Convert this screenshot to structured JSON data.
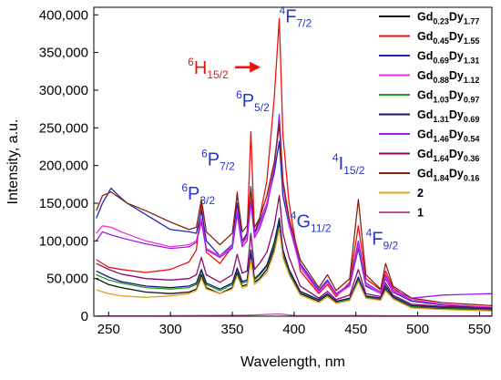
{
  "chart_data": {
    "type": "line",
    "xlabel": "Wavelength, nm",
    "ylabel": "Intensity, a.u.",
    "xlim": [
      238,
      560
    ],
    "ylim": [
      0,
      410000
    ],
    "x_ticks": [
      250,
      300,
      350,
      400,
      450,
      500,
      550
    ],
    "y_ticks": [
      0,
      50000,
      100000,
      150000,
      200000,
      250000,
      300000,
      350000,
      400000
    ],
    "y_tick_labels": [
      "0",
      "50,000",
      "100,000",
      "150,000",
      "200,000",
      "250,000",
      "300,000",
      "350,000",
      "400,000"
    ],
    "legend_position": "top-right",
    "annotations": [
      {
        "id": "h15",
        "main": "H",
        "sup": "6",
        "sub": "15/2",
        "x": 314,
        "y": 322000,
        "color": "#e8130e",
        "arrow": true
      },
      {
        "id": "p32",
        "main": "P",
        "sup": "6",
        "sub": "3/2",
        "x": 309,
        "y": 155000,
        "color": "#2b35c8"
      },
      {
        "id": "p72",
        "main": "P",
        "sup": "6",
        "sub": "7/2",
        "x": 325,
        "y": 200000,
        "color": "#2b35c8"
      },
      {
        "id": "p52",
        "main": "P",
        "sup": "6",
        "sub": "5/2",
        "x": 353,
        "y": 278000,
        "color": "#2b35c8"
      },
      {
        "id": "f72",
        "main": "F",
        "sup": "4",
        "sub": "7/2",
        "x": 388,
        "y": 390000,
        "color": "#2b35c8"
      },
      {
        "id": "g112",
        "main": "G",
        "sup": "4",
        "sub": "11/2",
        "x": 397,
        "y": 118000,
        "color": "#2b35c8"
      },
      {
        "id": "i152",
        "main": "I",
        "sup": "4",
        "sub": "15/2",
        "x": 431,
        "y": 195000,
        "color": "#2b35c8"
      },
      {
        "id": "f92",
        "main": "F",
        "sup": "4",
        "sub": "9/2",
        "x": 458,
        "y": 95000,
        "color": "#2b35c8"
      }
    ],
    "series": [
      {
        "label_parts": [
          [
            "Gd",
            ""
          ],
          [
            "0.23",
            "sub"
          ],
          [
            "Dy",
            ""
          ],
          [
            "1.77",
            "sub"
          ]
        ],
        "color": "#111111",
        "x": [
          240,
          250,
          260,
          280,
          300,
          315,
          321,
          325,
          329,
          340,
          350,
          354,
          358,
          362,
          365,
          368,
          372,
          378,
          384,
          388,
          391,
          396,
          405,
          420,
          427,
          434,
          445,
          452,
          458,
          470,
          474,
          480,
          495,
          520,
          560
        ],
        "y": [
          50000,
          42000,
          38000,
          32000,
          30000,
          32000,
          36000,
          55000,
          38000,
          30000,
          38000,
          58000,
          40000,
          42000,
          80000,
          45000,
          50000,
          62000,
          90000,
          125000,
          80000,
          58000,
          30000,
          20000,
          28000,
          18000,
          22000,
          48000,
          25000,
          22000,
          36000,
          24000,
          12000,
          10000,
          8000
        ]
      },
      {
        "label_parts": [
          [
            "Gd",
            ""
          ],
          [
            "0.45",
            "sub"
          ],
          [
            "Dy",
            ""
          ],
          [
            "1.55",
            "sub"
          ]
        ],
        "color": "#e8130e",
        "x": [
          240,
          250,
          260,
          280,
          300,
          315,
          321,
          325,
          329,
          340,
          350,
          354,
          358,
          362,
          365,
          368,
          372,
          378,
          384,
          388,
          391,
          396,
          405,
          420,
          427,
          434,
          445,
          452,
          458,
          470,
          474,
          480,
          495,
          520,
          560
        ],
        "y": [
          75000,
          65000,
          62000,
          58000,
          62000,
          72000,
          88000,
          150000,
          85000,
          70000,
          92000,
          165000,
          95000,
          110000,
          245000,
          110000,
          130000,
          180000,
          290000,
          395000,
          240000,
          150000,
          60000,
          30000,
          42000,
          26000,
          45000,
          120000,
          50000,
          35000,
          60000,
          38000,
          20000,
          15000,
          12000
        ]
      },
      {
        "label_parts": [
          [
            "Gd",
            ""
          ],
          [
            "0.69",
            "sub"
          ],
          [
            "Dy",
            ""
          ],
          [
            "1.31",
            "sub"
          ]
        ],
        "color": "#1c2ab8",
        "x": [
          240,
          245,
          252,
          258,
          265,
          280,
          300,
          315,
          321,
          325,
          329,
          340,
          350,
          354,
          358,
          362,
          365,
          368,
          372,
          378,
          384,
          388,
          391,
          396,
          405,
          420,
          427,
          434,
          445,
          452,
          458,
          470,
          474,
          480,
          495,
          520,
          560
        ],
        "y": [
          130000,
          150000,
          170000,
          160000,
          150000,
          135000,
          115000,
          112000,
          110000,
          140000,
          100000,
          80000,
          95000,
          150000,
          100000,
          110000,
          172000,
          110000,
          125000,
          150000,
          190000,
          232000,
          160000,
          120000,
          70000,
          35000,
          48000,
          30000,
          40000,
          90000,
          40000,
          30000,
          50000,
          32000,
          20000,
          15000,
          10000
        ]
      },
      {
        "label_parts": [
          [
            "Gd",
            ""
          ],
          [
            "0.88",
            "sub"
          ],
          [
            "Dy",
            ""
          ],
          [
            "1.12",
            "sub"
          ]
        ],
        "color": "#f030e0",
        "x": [
          240,
          245,
          252,
          260,
          280,
          300,
          315,
          321,
          325,
          329,
          340,
          350,
          354,
          358,
          362,
          365,
          368,
          372,
          378,
          384,
          388,
          391,
          396,
          405,
          420,
          427,
          434,
          445,
          452,
          458,
          470,
          474,
          480,
          495,
          520,
          560
        ],
        "y": [
          110000,
          120000,
          118000,
          112000,
          100000,
          92000,
          95000,
          100000,
          130000,
          90000,
          80000,
          92000,
          140000,
          95000,
          105000,
          160000,
          108000,
          120000,
          150000,
          200000,
          255000,
          175000,
          120000,
          65000,
          32000,
          45000,
          28000,
          40000,
          95000,
          42000,
          30000,
          52000,
          33000,
          22000,
          16000,
          12000
        ]
      },
      {
        "label_parts": [
          [
            "Gd",
            ""
          ],
          [
            "1.03",
            "sub"
          ],
          [
            "Dy",
            ""
          ],
          [
            "0.97",
            "sub"
          ]
        ],
        "color": "#1f9a22",
        "x": [
          240,
          250,
          260,
          280,
          300,
          315,
          321,
          325,
          329,
          340,
          350,
          354,
          358,
          362,
          365,
          368,
          372,
          378,
          384,
          388,
          391,
          396,
          405,
          420,
          427,
          434,
          445,
          452,
          458,
          470,
          474,
          480,
          495,
          520,
          560
        ],
        "y": [
          55000,
          48000,
          44000,
          38000,
          36000,
          38000,
          42000,
          60000,
          42000,
          34000,
          42000,
          62000,
          44000,
          46000,
          85000,
          48000,
          54000,
          66000,
          95000,
          128000,
          85000,
          60000,
          32000,
          21000,
          29000,
          19000,
          23000,
          50000,
          26000,
          23000,
          38000,
          25000,
          13000,
          11000,
          9000
        ]
      },
      {
        "label_parts": [
          [
            "Gd",
            ""
          ],
          [
            "1.31",
            "sub"
          ],
          [
            "Dy",
            ""
          ],
          [
            "0.69",
            "sub"
          ]
        ],
        "color": "#14147a",
        "x": [
          240,
          250,
          260,
          280,
          300,
          315,
          321,
          325,
          329,
          340,
          350,
          354,
          358,
          362,
          365,
          368,
          372,
          378,
          384,
          388,
          391,
          396,
          405,
          420,
          427,
          434,
          445,
          452,
          458,
          470,
          474,
          480,
          495,
          520,
          560
        ],
        "y": [
          60000,
          52000,
          46000,
          40000,
          38000,
          40000,
          44000,
          62000,
          44000,
          36000,
          44000,
          64000,
          46000,
          48000,
          88000,
          50000,
          56000,
          68000,
          98000,
          130000,
          88000,
          62000,
          33000,
          22000,
          30000,
          20000,
          24000,
          52000,
          27000,
          24000,
          40000,
          26000,
          14000,
          12000,
          10000
        ]
      },
      {
        "label_parts": [
          [
            "Gd",
            ""
          ],
          [
            "1.46",
            "sub"
          ],
          [
            "Dy",
            ""
          ],
          [
            "0.54",
            "sub"
          ]
        ],
        "color": "#9a1ee8",
        "x": [
          240,
          245,
          252,
          260,
          280,
          300,
          315,
          321,
          325,
          329,
          340,
          350,
          354,
          358,
          362,
          365,
          368,
          372,
          378,
          384,
          388,
          391,
          396,
          405,
          420,
          427,
          434,
          445,
          452,
          458,
          470,
          474,
          480,
          495,
          520,
          560
        ],
        "y": [
          100000,
          112000,
          108000,
          104000,
          96000,
          90000,
          92000,
          98000,
          125000,
          88000,
          78000,
          90000,
          135000,
          92000,
          100000,
          152000,
          104000,
          116000,
          145000,
          195000,
          268000,
          180000,
          125000,
          68000,
          34000,
          47000,
          30000,
          42000,
          100000,
          44000,
          32000,
          55000,
          35000,
          24000,
          28000,
          30000
        ]
      },
      {
        "label_parts": [
          [
            "Gd",
            ""
          ],
          [
            "1.64",
            "sub"
          ],
          [
            "Dy",
            ""
          ],
          [
            "0.36",
            "sub"
          ]
        ],
        "color": "#8a0a6a",
        "x": [
          240,
          250,
          260,
          280,
          300,
          315,
          321,
          325,
          329,
          340,
          350,
          354,
          358,
          362,
          365,
          368,
          372,
          378,
          384,
          388,
          391,
          396,
          405,
          420,
          427,
          434,
          445,
          452,
          458,
          470,
          474,
          480,
          495,
          520,
          560
        ],
        "y": [
          70000,
          62000,
          56000,
          50000,
          48000,
          50000,
          55000,
          78000,
          55000,
          45000,
          55000,
          82000,
          57000,
          60000,
          110000,
          62000,
          70000,
          85000,
          120000,
          160000,
          110000,
          78000,
          40000,
          24000,
          33000,
          22000,
          28000,
          62000,
          30000,
          26000,
          44000,
          28000,
          16000,
          13000,
          11000
        ]
      },
      {
        "label_parts": [
          [
            "Gd",
            ""
          ],
          [
            "1.84",
            "sub"
          ],
          [
            "Dy",
            ""
          ],
          [
            "0.16",
            "sub"
          ]
        ],
        "color": "#8a2410",
        "x": [
          240,
          245,
          252,
          258,
          265,
          280,
          300,
          315,
          321,
          325,
          329,
          340,
          350,
          354,
          358,
          362,
          365,
          368,
          372,
          378,
          384,
          388,
          391,
          396,
          405,
          420,
          427,
          434,
          445,
          452,
          458,
          470,
          474,
          480,
          495,
          520,
          560
        ],
        "y": [
          140000,
          160000,
          165000,
          158000,
          150000,
          140000,
          125000,
          115000,
          118000,
          155000,
          112000,
          95000,
          110000,
          162000,
          112000,
          120000,
          170000,
          118000,
          130000,
          160000,
          205000,
          255000,
          180000,
          130000,
          75000,
          38000,
          55000,
          34000,
          50000,
          155000,
          55000,
          36000,
          70000,
          40000,
          24000,
          18000,
          14000
        ]
      },
      {
        "label_parts": [
          [
            "2",
            ""
          ]
        ],
        "color": "#e6a020",
        "x": [
          240,
          250,
          260,
          280,
          300,
          315,
          321,
          325,
          329,
          340,
          350,
          354,
          358,
          362,
          365,
          368,
          372,
          378,
          384,
          388,
          391,
          396,
          405,
          420,
          427,
          434,
          445,
          452,
          458,
          470,
          474,
          480,
          495,
          520,
          560
        ],
        "y": [
          35000,
          30000,
          27000,
          25000,
          27000,
          30000,
          34000,
          50000,
          36000,
          30000,
          36000,
          54000,
          38000,
          40000,
          75000,
          42000,
          48000,
          58000,
          85000,
          115000,
          78000,
          55000,
          28000,
          18000,
          26000,
          17000,
          21000,
          46000,
          24000,
          21000,
          34000,
          23000,
          11000,
          9000,
          7000
        ]
      },
      {
        "label_parts": [
          [
            "1",
            ""
          ]
        ],
        "color": "#c050b0",
        "x": [
          240,
          280,
          320,
          360,
          388,
          400,
          450,
          500,
          560
        ],
        "y": [
          500,
          500,
          800,
          1200,
          3000,
          1000,
          800,
          500,
          400
        ]
      }
    ]
  }
}
